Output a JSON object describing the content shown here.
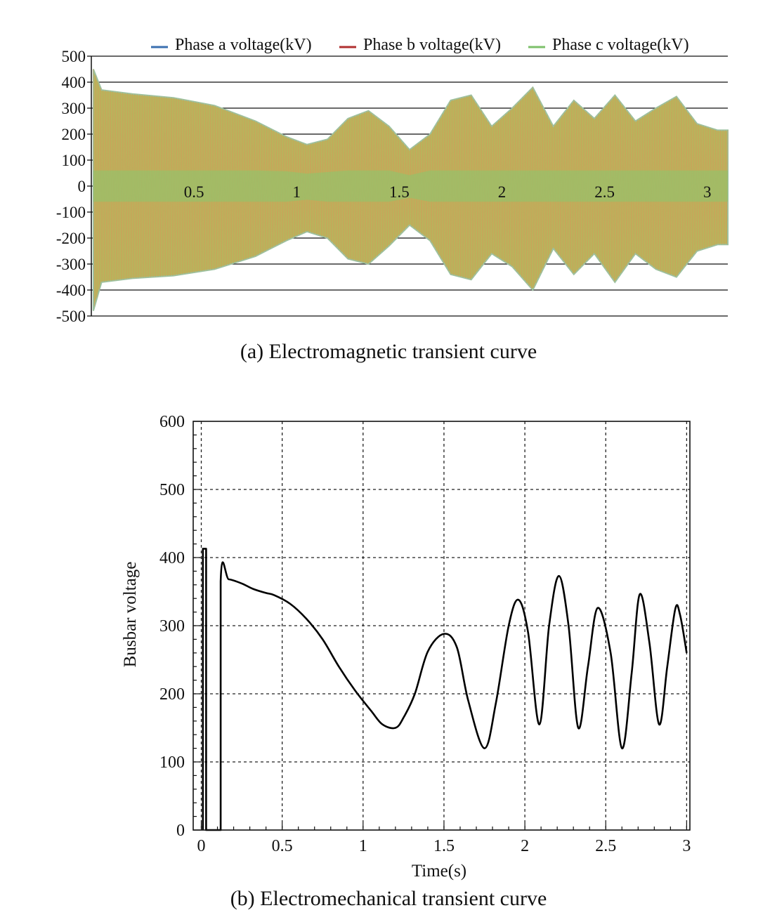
{
  "chart_data": [
    {
      "type": "line",
      "caption": "(a) Electromagnetic transient curve",
      "series": [
        {
          "name": "Phase a voltage(kV)",
          "color": "#3a6fb0"
        },
        {
          "name": "Phase b voltage(kV)",
          "color": "#b03030"
        },
        {
          "name": "Phase c voltage(kV)",
          "color": "#7cc06a"
        }
      ],
      "fill_color": "#b8b45c",
      "y_ticks": [
        500,
        400,
        300,
        200,
        100,
        0,
        -100,
        -200,
        -300,
        -400,
        -500
      ],
      "x_ticks": [
        0.5,
        1,
        1.5,
        2,
        2.5,
        3
      ],
      "ylim": [
        -500,
        500
      ],
      "xlim": [
        0,
        3.1
      ],
      "grid": "horizontal",
      "legend_position": "top",
      "envelope": {
        "x": [
          0.01,
          0.05,
          0.2,
          0.4,
          0.6,
          0.8,
          0.95,
          1.05,
          1.15,
          1.25,
          1.35,
          1.45,
          1.55,
          1.65,
          1.75,
          1.85,
          1.95,
          2.05,
          2.15,
          2.25,
          2.35,
          2.45,
          2.55,
          2.65,
          2.75,
          2.85,
          2.95,
          3.05,
          3.1
        ],
        "upper": [
          450,
          370,
          355,
          340,
          310,
          250,
          190,
          160,
          180,
          260,
          290,
          230,
          140,
          200,
          330,
          350,
          230,
          300,
          380,
          230,
          330,
          260,
          350,
          250,
          300,
          345,
          240,
          215,
          215
        ],
        "lower": [
          -480,
          -370,
          -355,
          -345,
          -320,
          -270,
          -210,
          -175,
          -200,
          -280,
          -300,
          -230,
          -150,
          -210,
          -340,
          -360,
          -260,
          -310,
          -400,
          -240,
          -340,
          -260,
          -370,
          -260,
          -320,
          -350,
          -250,
          -225,
          -225
        ]
      }
    },
    {
      "type": "line",
      "caption": "(b) Electromechanical transient curve",
      "xlabel": "Time(s)",
      "ylabel": "Busbar voltage",
      "xlim": [
        -0.05,
        3.02
      ],
      "ylim": [
        0,
        600
      ],
      "x_ticks": [
        "0",
        "0.5",
        "1",
        "1.5",
        "2",
        "2.5",
        "3"
      ],
      "y_ticks": [
        "0",
        "100",
        "200",
        "300",
        "400",
        "500",
        "600"
      ],
      "grid": "dashed",
      "series": [
        {
          "name": "",
          "x": [
            0.01,
            0.01,
            0.03,
            0.03,
            0.12,
            0.12,
            0.17,
            0.25,
            0.32,
            0.4,
            0.45,
            0.55,
            0.65,
            0.75,
            0.85,
            0.95,
            1.05,
            1.12,
            1.2,
            1.25,
            1.32,
            1.4,
            1.5,
            1.58,
            1.65,
            1.75,
            1.82,
            1.9,
            1.96,
            2.02,
            2.09,
            2.15,
            2.21,
            2.27,
            2.33,
            2.39,
            2.45,
            2.53,
            2.6,
            2.66,
            2.71,
            2.77,
            2.83,
            2.88,
            2.93,
            2.96,
            3.0
          ],
          "y": [
            0,
            413,
            413,
            0,
            0,
            365,
            368,
            362,
            354,
            348,
            345,
            332,
            310,
            280,
            240,
            205,
            175,
            155,
            150,
            165,
            200,
            262,
            288,
            268,
            190,
            120,
            185,
            300,
            338,
            290,
            155,
            300,
            373,
            300,
            150,
            240,
            326,
            260,
            120,
            230,
            346,
            275,
            155,
            240,
            325,
            315,
            260
          ]
        }
      ]
    }
  ]
}
